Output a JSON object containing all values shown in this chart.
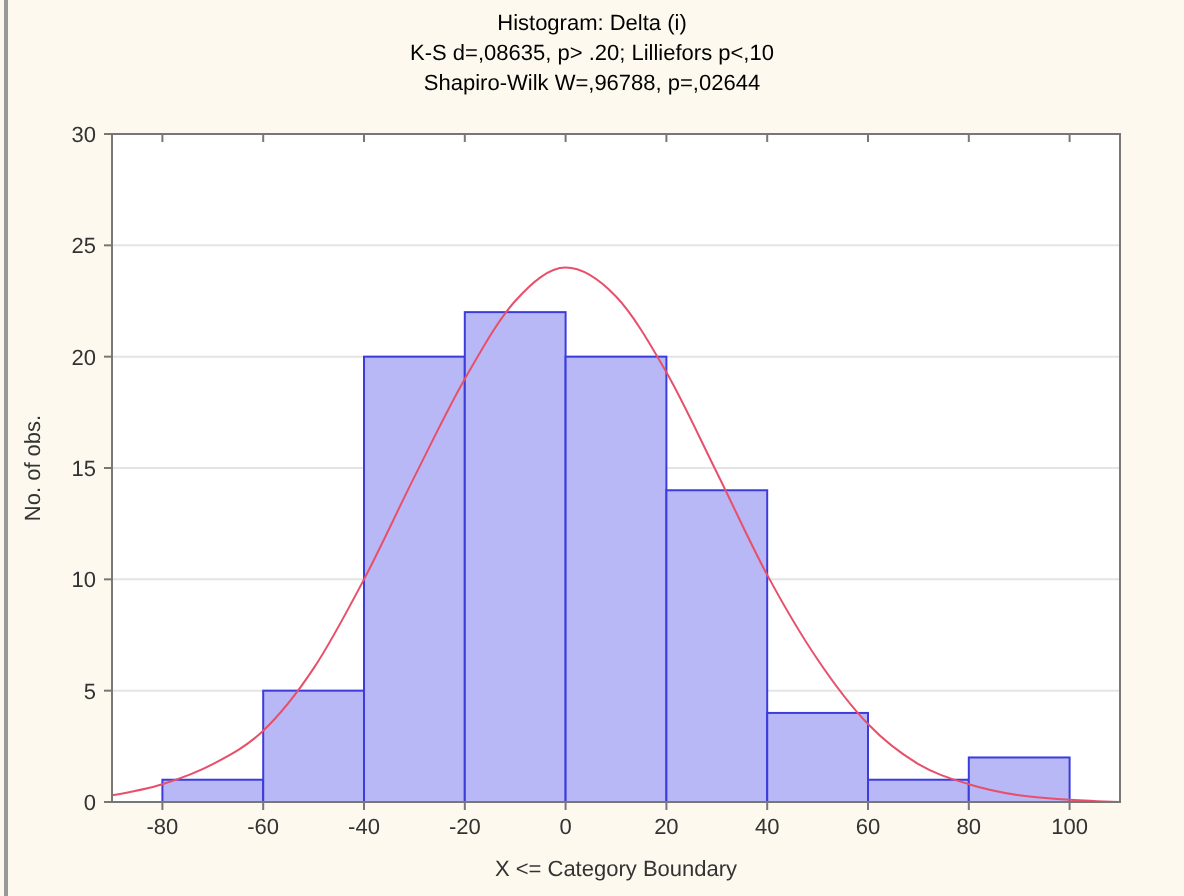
{
  "chart_data": {
    "type": "histogram",
    "title": "Histogram: Delta (i)",
    "subtitle": "K-S d=,08635, p> .20; Lilliefors p<,10\nShapiro-Wilk W=,96788, p=,02644",
    "xlabel": "X <= Category Boundary",
    "ylabel": "No. of obs.",
    "bins": [
      -80,
      -60,
      -40,
      -20,
      0,
      20,
      40,
      60,
      80,
      100
    ],
    "values": [
      1,
      5,
      20,
      22,
      20,
      14,
      4,
      1,
      2
    ],
    "color": "#b8b8f6",
    "series": [
      {
        "type": "line",
        "color": "#e8506a",
        "x": [
          -90,
          -80,
          -70,
          -60,
          -50,
          -40,
          -30,
          -20,
          -10,
          0,
          10,
          20,
          30,
          40,
          50,
          60,
          70,
          80,
          90,
          100,
          110
        ],
        "values": [
          0.3,
          0.8,
          1.7,
          3.2,
          6,
          10,
          14.6,
          19,
          22.5,
          24,
          22.7,
          19.3,
          14.8,
          10.2,
          6.4,
          3.5,
          1.7,
          0.8,
          0.3,
          0.1,
          0
        ]
      }
    ],
    "xlim": [
      -90,
      110
    ],
    "xticks": [
      -80,
      -60,
      -40,
      -20,
      0,
      20,
      40,
      60,
      80,
      100
    ],
    "ylim": [
      0,
      30
    ],
    "yticks": [
      0,
      5,
      10,
      15,
      20,
      25,
      30
    ],
    "grid": "y"
  }
}
